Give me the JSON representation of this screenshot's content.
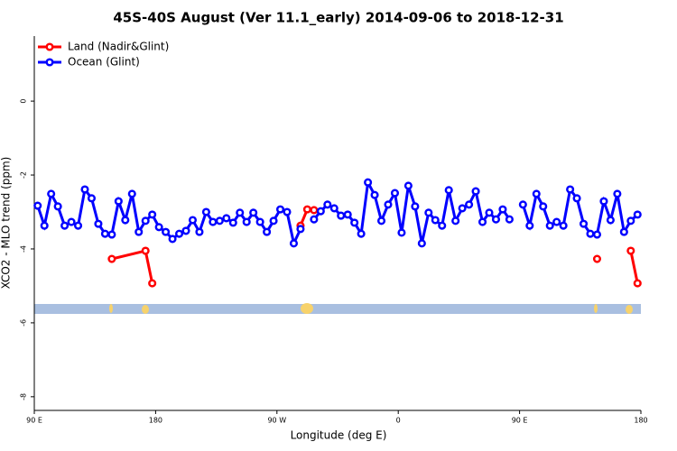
{
  "chart_data": {
    "type": "line",
    "title": "45S-40S August (Ver 11.1_early)   2014-09-06 to 2018-12-31",
    "x_label": "Longitude (deg E)",
    "y_label": "XCO2 - MLO trend (ppm)",
    "xlim": [
      90,
      540
    ],
    "xticks": [
      {
        "value": 90,
        "label": "90 E"
      },
      180,
      {
        "value": 270,
        "label": "90 W"
      },
      {
        "value": 360,
        "label": "0"
      },
      {
        "value": 450,
        "label": "90 E"
      },
      {
        "value": 540,
        "label": "180"
      }
    ],
    "ylim": [
      -8.37,
      1.76
    ],
    "yticks": [
      0,
      -2,
      -4,
      -6,
      -8
    ],
    "legend": "top-left",
    "series": [
      {
        "name": "Land (Nadir&Glint)",
        "color": "#ff0000",
        "x": [
          147.5,
          172.5,
          177.5,
          182.5,
          287.5,
          292.5,
          297.5,
          302.5,
          507.5,
          512.5,
          532.5,
          537.5
        ],
        "values": [
          -4.27,
          -4.05,
          -4.93,
          null,
          -3.37,
          -2.93,
          -2.95,
          null,
          -4.27,
          null,
          -4.05,
          -4.93
        ]
      },
      {
        "name": "Ocean (Glint)",
        "color": "#0000ff",
        "x": [
          92.5,
          97.5,
          102.5,
          107.5,
          112.5,
          117.5,
          122.5,
          127.5,
          132.5,
          137.5,
          142.5,
          147.5,
          152.5,
          157.5,
          162.5,
          167.5,
          172.5,
          177.5,
          182.5,
          187.5,
          192.5,
          197.5,
          202.5,
          207.5,
          212.5,
          217.5,
          222.5,
          227.5,
          232.5,
          237.5,
          242.5,
          247.5,
          252.5,
          257.5,
          262.5,
          267.5,
          272.5,
          277.5,
          282.5,
          287.5,
          292.5,
          297.5,
          302.5,
          307.5,
          312.5,
          317.5,
          322.5,
          327.5,
          332.5,
          337.5,
          342.5,
          347.5,
          352.5,
          357.5,
          362.5,
          367.5,
          372.5,
          377.5,
          382.5,
          387.5,
          392.5,
          397.5,
          402.5,
          407.5,
          412.5,
          417.5,
          422.5,
          427.5,
          432.5,
          437.5,
          442.5,
          447.5,
          452.5,
          457.5,
          462.5,
          467.5,
          472.5,
          477.5,
          482.5,
          487.5,
          492.5,
          497.5,
          502.5,
          507.5,
          512.5,
          517.5,
          522.5,
          527.5,
          532.5,
          537.5
        ],
        "values": [
          -2.83,
          -3.37,
          -2.51,
          -2.85,
          -3.37,
          -3.27,
          -3.37,
          -2.39,
          -2.63,
          -3.32,
          -3.59,
          -3.61,
          -2.71,
          -3.22,
          -2.51,
          -3.54,
          -3.24,
          -3.07,
          -3.41,
          -3.54,
          -3.73,
          -3.59,
          -3.51,
          -3.22,
          -3.54,
          -3.0,
          -3.27,
          -3.24,
          -3.17,
          -3.29,
          -3.02,
          -3.27,
          -3.02,
          -3.27,
          -3.54,
          -3.24,
          -2.93,
          -3.0,
          -3.85,
          -3.46,
          null,
          -3.2,
          -2.98,
          -2.8,
          -2.9,
          -3.1,
          -3.07,
          -3.29,
          -3.59,
          -2.2,
          -2.54,
          -3.24,
          -2.8,
          -2.49,
          -3.56,
          -2.29,
          -2.85,
          -3.85,
          -3.02,
          -3.22,
          -3.37,
          -2.41,
          -3.24,
          -2.9,
          -2.8,
          -2.44,
          -3.27,
          -3.02,
          -3.2,
          -2.93,
          -3.2,
          null,
          -2.8,
          -3.37,
          -2.51,
          -2.85,
          -3.37,
          -3.27,
          -3.37,
          -2.39,
          -2.63,
          -3.32,
          -3.59,
          -3.61,
          -2.71,
          -3.22,
          -2.51,
          -3.54,
          -3.24,
          -3.07
        ]
      }
    ]
  }
}
